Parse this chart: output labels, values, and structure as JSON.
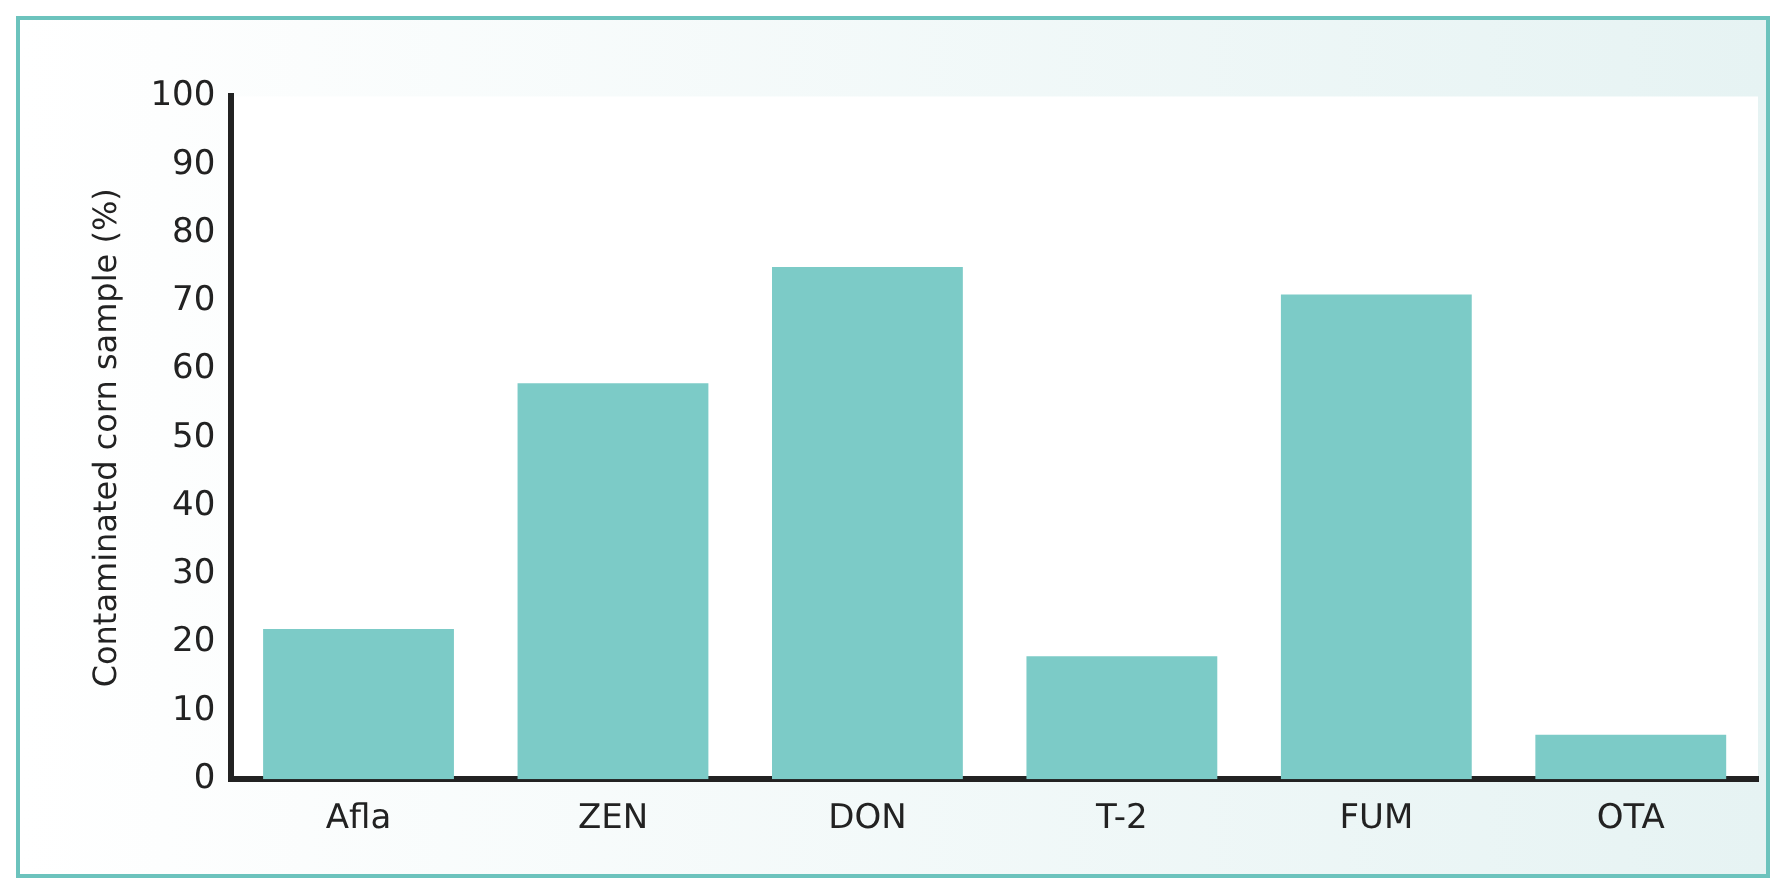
{
  "chart_data": {
    "type": "bar",
    "ylabel": "Contaminated corn sample (%)",
    "categories": [
      "Afla",
      "ZEN",
      "DON",
      "T-2",
      "FUM",
      "OTA"
    ],
    "values": [
      22,
      58,
      75,
      18,
      71,
      6.5
    ],
    "color": "#7ccbc7",
    "ylim": [
      0,
      100
    ],
    "yticks": [
      0,
      10,
      20,
      30,
      40,
      50,
      60,
      70,
      80,
      90,
      100
    ],
    "grid": false,
    "legend": false
  }
}
